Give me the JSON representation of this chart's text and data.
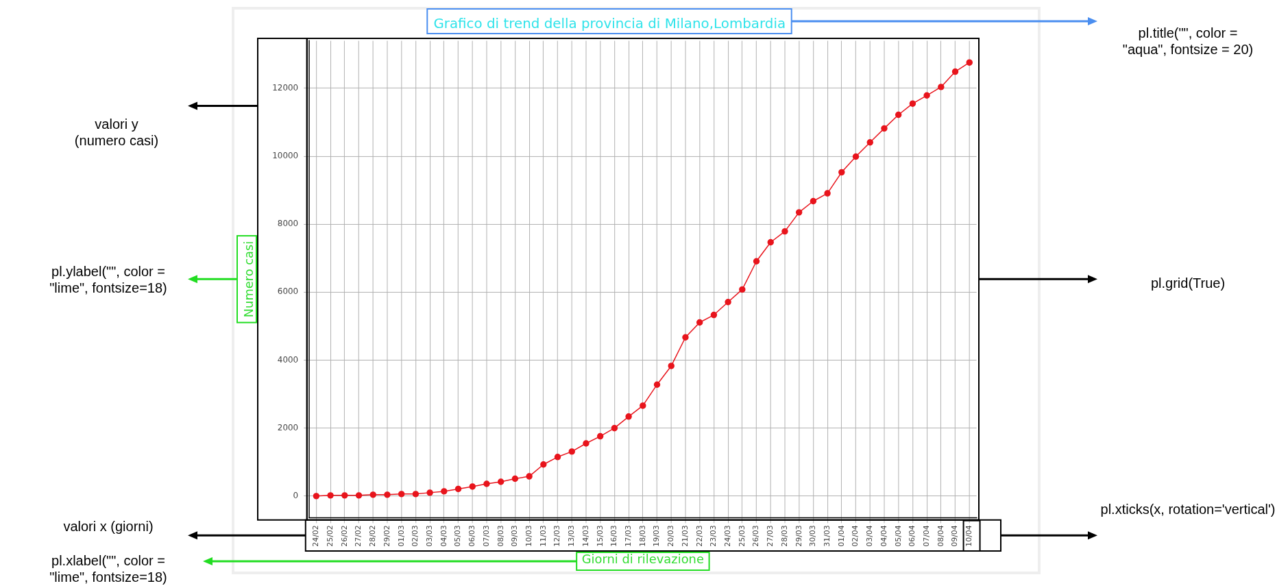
{
  "chart_data": {
    "type": "line",
    "title": "Grafico di trend della provincia di Milano,Lombardia",
    "xlabel": "Giorni di rilevazione",
    "ylabel": "Numero casi",
    "categories": [
      "24/02",
      "25/02",
      "26/02",
      "27/02",
      "28/02",
      "29/02",
      "01/03",
      "02/03",
      "03/03",
      "04/03",
      "05/03",
      "06/03",
      "07/03",
      "08/03",
      "09/03",
      "10/03",
      "11/03",
      "12/03",
      "13/03",
      "14/03",
      "15/03",
      "16/03",
      "17/03",
      "18/03",
      "19/03",
      "20/03",
      "21/03",
      "22/03",
      "23/03",
      "24/03",
      "25/03",
      "26/03",
      "27/03",
      "28/03",
      "29/03",
      "30/03",
      "31/03",
      "01/04",
      "02/04",
      "03/04",
      "04/04",
      "05/04",
      "06/04",
      "07/04",
      "08/04",
      "09/04",
      "10/04"
    ],
    "series": [
      {
        "color": "#e8141c",
        "values": [
          0,
          20,
          20,
          20,
          40,
          40,
          60,
          60,
          100,
          140,
          210,
          280,
          360,
          420,
          510,
          580,
          930,
          1150,
          1310,
          1550,
          1760,
          2000,
          2340,
          2660,
          3280,
          3830,
          4670,
          5110,
          5330,
          5710,
          6080,
          6910,
          7470,
          7790,
          8350,
          8680,
          8910,
          9530,
          9990,
          10410,
          10820,
          11220,
          11550,
          11790,
          12040,
          12490,
          12760
        ]
      }
    ],
    "ylim": [
      -638,
      13398
    ],
    "yticks": [
      0,
      2000,
      4000,
      6000,
      8000,
      10000,
      12000
    ],
    "grid": true,
    "marker": "circle",
    "line_style": "solid",
    "legend": false,
    "annotations": [
      "valori y\n(numero casi)",
      "pl.ylabel(\"\", color =\n\"lime\", fontsize=18)",
      "valori x (giorni)",
      "pl.xlabel(\"\", color =\n\"lime\", fontsize=18)",
      "pl.title(\"\", color =\n\"aqua\", fontsize = 20)",
      "pl.grid(True)",
      "pl.xticks(x, rotation='vertical')"
    ]
  }
}
